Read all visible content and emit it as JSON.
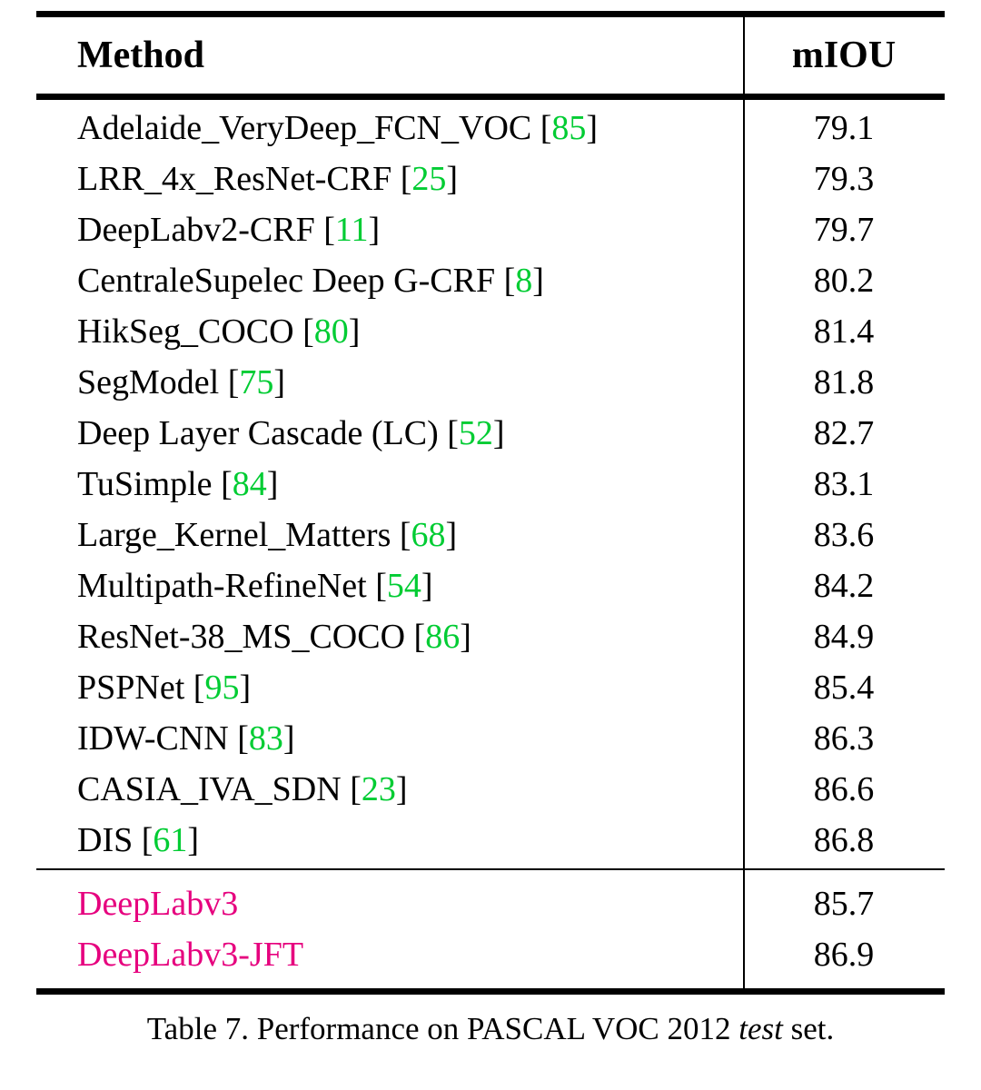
{
  "table": {
    "columns": [
      "Method",
      "mIOU"
    ],
    "rows": [
      {
        "method": "Adelaide_VeryDeep_FCN_VOC",
        "cite": "85",
        "miou": "79.1"
      },
      {
        "method": "LRR_4x_ResNet-CRF",
        "cite": "25",
        "miou": "79.3"
      },
      {
        "method": "DeepLabv2-CRF",
        "cite": "11",
        "miou": "79.7"
      },
      {
        "method": "CentraleSupelec Deep G-CRF",
        "cite": "8",
        "miou": "80.2"
      },
      {
        "method": "HikSeg_COCO",
        "cite": "80",
        "miou": "81.4"
      },
      {
        "method": "SegModel",
        "cite": "75",
        "miou": "81.8"
      },
      {
        "method": "Deep Layer Cascade (LC)",
        "cite": "52",
        "miou": "82.7"
      },
      {
        "method": "TuSimple",
        "cite": "84",
        "miou": "83.1"
      },
      {
        "method": "Large_Kernel_Matters",
        "cite": "68",
        "miou": "83.6"
      },
      {
        "method": "Multipath-RefineNet",
        "cite": "54",
        "miou": "84.2"
      },
      {
        "method": "ResNet-38_MS_COCO",
        "cite": "86",
        "miou": "84.9"
      },
      {
        "method": "PSPNet",
        "cite": "95",
        "miou": "85.4"
      },
      {
        "method": "IDW-CNN",
        "cite": "83",
        "miou": "86.3"
      },
      {
        "method": "CASIA_IVA_SDN",
        "cite": "23",
        "miou": "86.6"
      },
      {
        "method": "DIS",
        "cite": "61",
        "miou": "86.8"
      }
    ],
    "highlight_rows": [
      {
        "method": "DeepLabv3",
        "miou": "85.7"
      },
      {
        "method": "DeepLabv3-JFT",
        "miou": "86.9"
      }
    ]
  },
  "caption": {
    "prefix": "Table 7. Performance on PASCAL VOC 2012 ",
    "italic": "test",
    "suffix": " set."
  },
  "colors": {
    "citation": "#00cc33",
    "highlight": "#e6007e",
    "rule": "#000000"
  }
}
